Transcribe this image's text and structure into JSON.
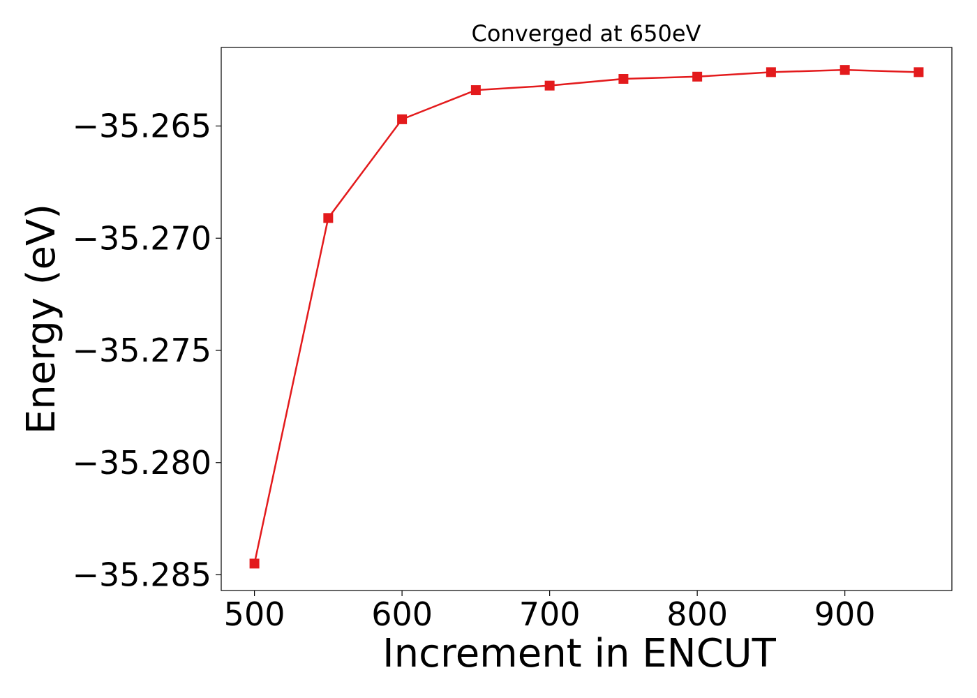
{
  "chart_data": {
    "type": "line",
    "title": "Converged at 650eV",
    "xlabel": "Increment in ENCUT",
    "ylabel": "Energy (eV)",
    "x": [
      500,
      550,
      600,
      650,
      700,
      750,
      800,
      850,
      900,
      950
    ],
    "series": [
      {
        "values": [
          -35.2845,
          -35.2691,
          -35.2647,
          -35.2634,
          -35.2632,
          -35.2629,
          -35.2628,
          -35.2626,
          -35.2625,
          -35.2626
        ],
        "color": "#e31a1c",
        "marker": "square"
      }
    ],
    "xlim": [
      477.5,
      972.5
    ],
    "ylim": [
      -35.2857,
      -35.2615
    ],
    "xticks": [
      500,
      600,
      700,
      800,
      900
    ],
    "yticks": [
      -35.285,
      -35.28,
      -35.275,
      -35.27,
      -35.265
    ],
    "ytick_labels": [
      "−35.285",
      "−35.280",
      "−35.275",
      "−35.270",
      "−35.265"
    ],
    "xtick_labels": [
      "500",
      "600",
      "700",
      "800",
      "900"
    ],
    "grid": false,
    "legend": "none"
  }
}
